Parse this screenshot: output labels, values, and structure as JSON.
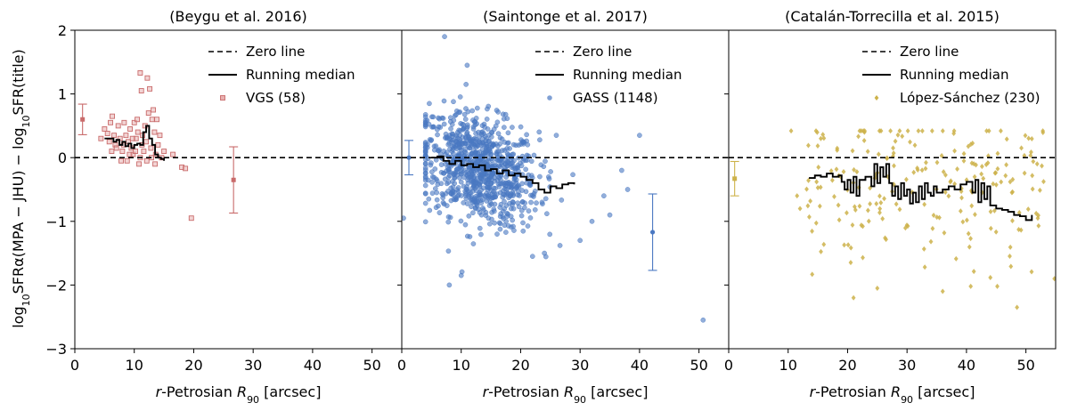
{
  "chart_data": {
    "type": "scatter",
    "ylabel": "log10SFRα(MPA − JHU) − log10SFR(title)",
    "ylabel_parts": {
      "log": "log",
      "sub": "10",
      "sfr_alpha": "SFRα(MPA − JHU) − ",
      "sfr_title": "SFR(title)"
    },
    "xlabel_parts": {
      "r": "r",
      "mid": "-Petrosian ",
      "R": "R",
      "sub": "90",
      "unit": " [arcsec]"
    },
    "xlim": [
      0,
      55
    ],
    "ylim": [
      -3,
      2
    ],
    "xticks": [
      "0",
      "10",
      "20",
      "30",
      "40",
      "50"
    ],
    "yticks": [
      "−3",
      "−2",
      "−1",
      "0",
      "1",
      "2"
    ],
    "panels": [
      {
        "title": "(Beygu et al. 2016)",
        "legend": {
          "zero": "Zero line",
          "median": "Running median",
          "sample": "VGS (58)"
        },
        "color": "#c96b6b",
        "marker": "square",
        "errorbars": [
          {
            "x": 1.3,
            "y": 0.6,
            "err": 0.24
          },
          {
            "x": 26.7,
            "y": -0.35,
            "err": 0.52
          }
        ],
        "median": [
          [
            5,
            0.3
          ],
          [
            6,
            0.3
          ],
          [
            6.5,
            0.25
          ],
          [
            7,
            0.28
          ],
          [
            7.5,
            0.2
          ],
          [
            8,
            0.25
          ],
          [
            8.5,
            0.18
          ],
          [
            9,
            0.22
          ],
          [
            9.5,
            0.15
          ],
          [
            10,
            0.2
          ],
          [
            10.5,
            0.22
          ],
          [
            11,
            0.2
          ],
          [
            11.5,
            0.4
          ],
          [
            12,
            0.5
          ],
          [
            12.5,
            0.3
          ],
          [
            13,
            0.2
          ],
          [
            13.5,
            0.05
          ],
          [
            14,
            0.0
          ],
          [
            14.5,
            -0.02
          ],
          [
            15,
            -0.05
          ]
        ],
        "points": [
          [
            4.4,
            0.3
          ],
          [
            5.0,
            0.45
          ],
          [
            5.5,
            0.38
          ],
          [
            6.0,
            0.55
          ],
          [
            6.3,
            0.65
          ],
          [
            6.8,
            0.2
          ],
          [
            7.0,
            0.15
          ],
          [
            7.3,
            0.5
          ],
          [
            7.6,
            0.3
          ],
          [
            8.0,
            0.1
          ],
          [
            8.3,
            0.55
          ],
          [
            8.6,
            0.35
          ],
          [
            8.8,
            -0.05
          ],
          [
            9.0,
            0.25
          ],
          [
            9.3,
            0.45
          ],
          [
            9.5,
            0.15
          ],
          [
            9.8,
            0.05
          ],
          [
            10.0,
            0.55
          ],
          [
            10.3,
            0.3
          ],
          [
            10.5,
            0.6
          ],
          [
            10.8,
            -0.1
          ],
          [
            11.0,
            1.33
          ],
          [
            11.2,
            1.05
          ],
          [
            11.4,
            0.35
          ],
          [
            11.6,
            0.1
          ],
          [
            11.8,
            0.5
          ],
          [
            12.0,
            0.25
          ],
          [
            12.2,
            1.25
          ],
          [
            12.4,
            0.7
          ],
          [
            12.6,
            1.08
          ],
          [
            12.8,
            0.15
          ],
          [
            13.0,
            0.6
          ],
          [
            13.2,
            0.75
          ],
          [
            13.4,
            0.4
          ],
          [
            13.6,
            0.05
          ],
          [
            13.8,
            0.6
          ],
          [
            14.0,
            0.2
          ],
          [
            14.3,
            0.35
          ],
          [
            14.6,
            0.0
          ],
          [
            15.0,
            0.1
          ],
          [
            16.5,
            0.05
          ],
          [
            18.0,
            -0.15
          ],
          [
            18.6,
            -0.17
          ],
          [
            19.6,
            -0.95
          ],
          [
            6.2,
            0.1
          ],
          [
            7.8,
            -0.05
          ],
          [
            9.2,
            0.05
          ],
          [
            10.2,
            0.1
          ],
          [
            11.0,
            0.0
          ],
          [
            12.1,
            -0.05
          ],
          [
            12.9,
            0.0
          ],
          [
            13.5,
            -0.1
          ],
          [
            8.2,
            0.2
          ],
          [
            6.6,
            0.35
          ],
          [
            5.8,
            0.25
          ],
          [
            10.6,
            0.4
          ],
          [
            9.7,
            0.3
          ],
          [
            11.3,
            0.2
          ]
        ]
      },
      {
        "title": "(Saintonge et al. 2017)",
        "legend": {
          "zero": "Zero line",
          "median": "Running median",
          "sample": "GASS (1148)"
        },
        "color": "#4a78c2",
        "marker": "circle",
        "errorbars": [
          {
            "x": 1.2,
            "y": 0.0,
            "err": 0.27
          },
          {
            "x": 42.2,
            "y": -1.17,
            "err": 0.6
          }
        ],
        "median": [
          [
            5,
            0.0
          ],
          [
            6,
            0.02
          ],
          [
            7,
            -0.05
          ],
          [
            8,
            -0.1
          ],
          [
            9,
            -0.05
          ],
          [
            10,
            -0.12
          ],
          [
            11,
            -0.1
          ],
          [
            12,
            -0.15
          ],
          [
            13,
            -0.12
          ],
          [
            14,
            -0.2
          ],
          [
            15,
            -0.18
          ],
          [
            16,
            -0.25
          ],
          [
            17,
            -0.2
          ],
          [
            18,
            -0.28
          ],
          [
            19,
            -0.25
          ],
          [
            20,
            -0.3
          ],
          [
            21,
            -0.35
          ],
          [
            22,
            -0.4
          ],
          [
            23,
            -0.5
          ],
          [
            24,
            -0.55
          ],
          [
            25,
            -0.45
          ],
          [
            26,
            -0.48
          ],
          [
            27,
            -0.42
          ],
          [
            28,
            -0.4
          ],
          [
            29,
            -0.42
          ]
        ],
        "points": "generated",
        "extra_points": [
          [
            7.2,
            1.9
          ],
          [
            11.0,
            1.45
          ],
          [
            50.7,
            -2.55
          ],
          [
            40.0,
            0.35
          ],
          [
            37.0,
            -0.2
          ],
          [
            34.0,
            -0.6
          ],
          [
            32.0,
            -1.0
          ],
          [
            30.0,
            -1.3
          ],
          [
            35.0,
            -0.9
          ],
          [
            38.0,
            -0.5
          ],
          [
            0.3,
            -0.95
          ],
          [
            26.0,
            0.35
          ],
          [
            24.0,
            -1.5
          ],
          [
            22.0,
            -1.55
          ],
          [
            8.0,
            -2.0
          ],
          [
            10.0,
            -1.85
          ]
        ]
      },
      {
        "title": "(Catalán-Torrecilla et al. 2015)",
        "legend": {
          "zero": "Zero line",
          "median": "Running median",
          "sample": "López-Sánchez (230)"
        },
        "color": "#cdb24a",
        "marker": "diamond",
        "errorbars": [
          {
            "x": 1.0,
            "y": -0.33,
            "err": 0.27
          }
        ],
        "median": [
          [
            13.5,
            -0.32
          ],
          [
            14.5,
            -0.28
          ],
          [
            15.5,
            -0.3
          ],
          [
            16.5,
            -0.25
          ],
          [
            17.5,
            -0.3
          ],
          [
            18.5,
            -0.28
          ],
          [
            19.0,
            -0.38
          ],
          [
            19.5,
            -0.5
          ],
          [
            20.0,
            -0.35
          ],
          [
            20.5,
            -0.55
          ],
          [
            21.0,
            -0.3
          ],
          [
            21.5,
            -0.6
          ],
          [
            22.0,
            -0.35
          ],
          [
            23.0,
            -0.3
          ],
          [
            24.0,
            -0.45
          ],
          [
            24.5,
            -0.1
          ],
          [
            25.0,
            -0.4
          ],
          [
            25.5,
            -0.15
          ],
          [
            26.0,
            -0.3
          ],
          [
            26.5,
            -0.1
          ],
          [
            27.0,
            -0.4
          ],
          [
            27.5,
            -0.6
          ],
          [
            28.0,
            -0.45
          ],
          [
            28.5,
            -0.65
          ],
          [
            29.0,
            -0.4
          ],
          [
            29.5,
            -0.6
          ],
          [
            30.0,
            -0.5
          ],
          [
            30.5,
            -0.72
          ],
          [
            31.0,
            -0.55
          ],
          [
            31.5,
            -0.7
          ],
          [
            32.0,
            -0.45
          ],
          [
            32.5,
            -0.65
          ],
          [
            33.0,
            -0.4
          ],
          [
            33.5,
            -0.55
          ],
          [
            34.0,
            -0.6
          ],
          [
            34.5,
            -0.45
          ],
          [
            35.0,
            -0.55
          ],
          [
            36.0,
            -0.5
          ],
          [
            37.0,
            -0.45
          ],
          [
            38.0,
            -0.5
          ],
          [
            39.0,
            -0.42
          ],
          [
            40.0,
            -0.38
          ],
          [
            41.0,
            -0.55
          ],
          [
            41.5,
            -0.35
          ],
          [
            42.0,
            -0.7
          ],
          [
            42.5,
            -0.4
          ],
          [
            43.0,
            -0.65
          ],
          [
            43.5,
            -0.45
          ],
          [
            44.0,
            -0.75
          ],
          [
            45.0,
            -0.8
          ],
          [
            46.0,
            -0.82
          ],
          [
            47.0,
            -0.85
          ],
          [
            48.0,
            -0.9
          ],
          [
            49.0,
            -0.92
          ],
          [
            50.0,
            -0.98
          ],
          [
            51.0,
            -0.9
          ]
        ],
        "points": "generated",
        "extra_points": [
          [
            10.5,
            0.42
          ],
          [
            11.5,
            -0.6
          ],
          [
            12.0,
            -0.8
          ],
          [
            21.0,
            -2.2
          ],
          [
            25.0,
            -2.05
          ],
          [
            36.0,
            -2.1
          ],
          [
            48.5,
            -2.35
          ],
          [
            54.8,
            -1.9
          ],
          [
            52.0,
            -0.95
          ],
          [
            15.5,
            0.3
          ]
        ]
      }
    ]
  }
}
